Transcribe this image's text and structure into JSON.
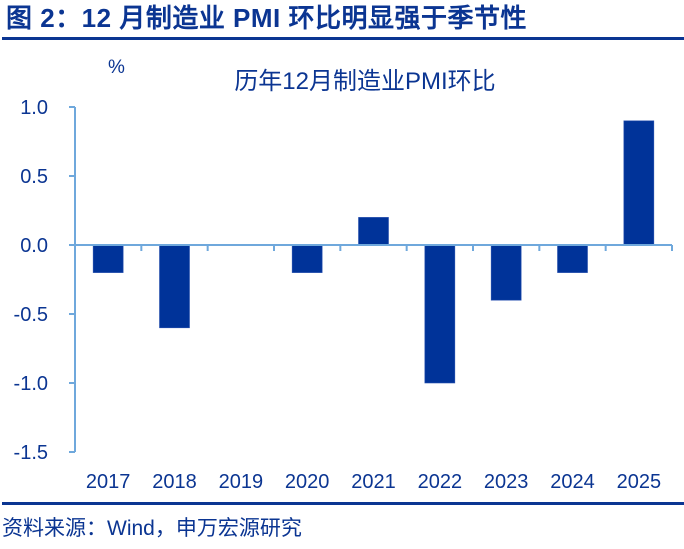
{
  "figure": {
    "title": "图 2：12 月制造业 PMI 环比明显强于季节性",
    "unit": "%",
    "source": "资料来源：Wind，申万宏源研究"
  },
  "colors": {
    "bar": "#003399",
    "axis": "#6fa8dc",
    "text": "#0b3592",
    "rule": "#0b3592"
  },
  "chart_data": {
    "type": "bar",
    "title": "历年12月制造业PMI环比",
    "xlabel": "",
    "ylabel": "%",
    "categories": [
      "2017",
      "2018",
      "2019",
      "2020",
      "2021",
      "2022",
      "2023",
      "2024",
      "2025"
    ],
    "values": [
      -0.2,
      -0.6,
      0.0,
      -0.2,
      0.2,
      -1.0,
      -0.4,
      -0.2,
      0.9
    ],
    "ylim": [
      -1.5,
      1.0
    ],
    "yticks": [
      "1.0",
      "0.5",
      "0.0",
      "-0.5",
      "-1.0",
      "-1.5"
    ],
    "ytick_values": [
      1.0,
      0.5,
      0.0,
      -0.5,
      -1.0,
      -1.5
    ],
    "grid": false,
    "legend": null
  }
}
